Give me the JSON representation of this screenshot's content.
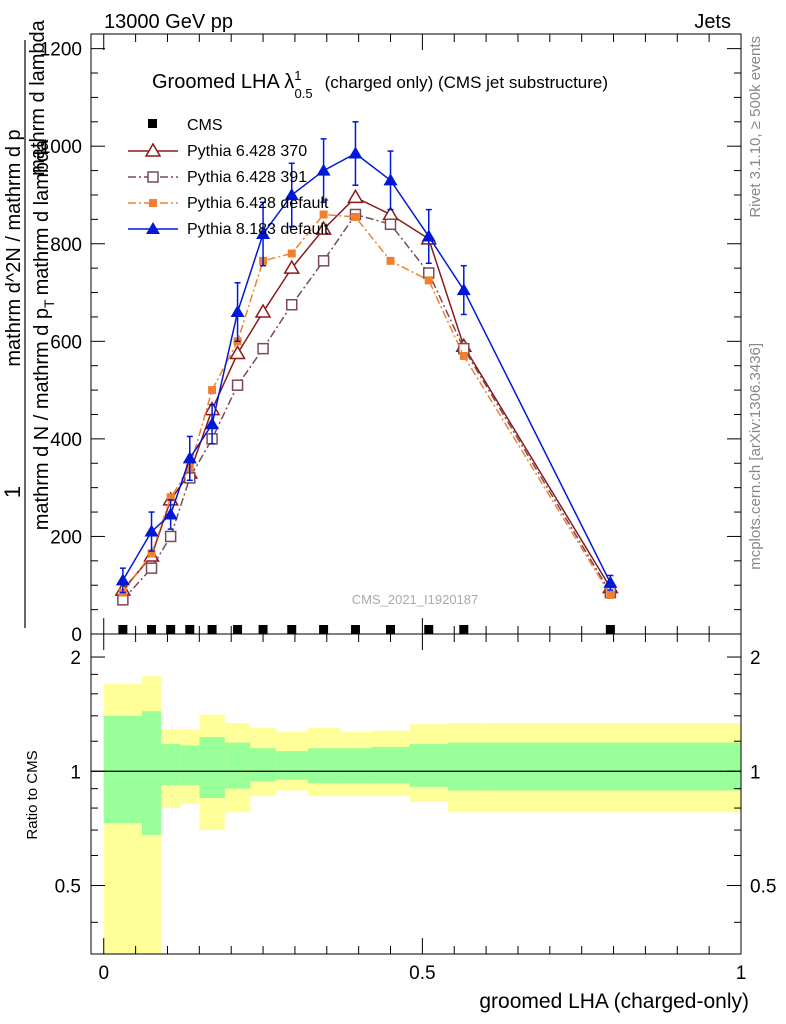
{
  "header": {
    "left": "13000 GeV pp",
    "right": "Jets"
  },
  "side": {
    "rivet": "Rivet 3.1.10, ≥ 500k events",
    "mcplots": "mcplots.cern.ch [arXiv:1306.3436]"
  },
  "watermark": "CMS_2021_I1920187",
  "chart_data": [
    {
      "type": "scatter",
      "title": "Groomed LHA λ",
      "title_sup": "1",
      "title_sub": "0.5",
      "title_suffix": "(charged only) (CMS jet substructure)",
      "ylabel_numerator": "1",
      "ylabel_main": "mathrm d N / mathrm d p",
      "ylabel_main_sub": "T",
      "ylabel_main_suffix": "mathrm d lambda",
      "ylabel_denominator": "mathrm d^2N / mathrm d p",
      "ylabel_extra": "mathrm d lambda",
      "ylim": [
        0,
        1230
      ],
      "yticks": [
        0,
        200,
        400,
        600,
        800,
        1000,
        1200
      ],
      "ytick_labels": [
        "0",
        "200",
        "400",
        "600",
        "800",
        "1000",
        "1200"
      ],
      "xlim": [
        -0.02,
        1.0
      ],
      "legend_position": "top-left",
      "x": [
        0.03,
        0.075,
        0.105,
        0.135,
        0.17,
        0.21,
        0.25,
        0.295,
        0.345,
        0.395,
        0.45,
        0.51,
        0.565,
        0.795
      ],
      "series": [
        {
          "name": "CMS",
          "color": "#000000",
          "marker": "square-filled",
          "values": [
            0,
            0,
            0,
            0,
            0,
            0,
            0,
            0,
            0,
            0,
            0,
            0,
            0,
            0
          ]
        },
        {
          "name": "Pythia 6.428 370",
          "color": "#8b1a1a",
          "marker": "triangle-open",
          "dash": "solid",
          "values": [
            90,
            160,
            275,
            330,
            460,
            575,
            660,
            750,
            830,
            895,
            860,
            810,
            590,
            95
          ]
        },
        {
          "name": "Pythia 6.428 391",
          "color": "#7a4a55",
          "marker": "square-open",
          "dash": "dash-dot",
          "values": [
            70,
            135,
            200,
            320,
            400,
            510,
            585,
            675,
            765,
            860,
            840,
            740,
            585,
            85
          ]
        },
        {
          "name": "Pythia 6.428 default",
          "color": "#f08030",
          "marker": "square-filled",
          "dash": "dash-dot",
          "values": [
            85,
            165,
            280,
            340,
            500,
            600,
            765,
            780,
            860,
            855,
            765,
            725,
            570,
            80
          ]
        },
        {
          "name": "Pythia 8.183 default",
          "color": "#0018d8",
          "marker": "triangle-filled",
          "dash": "solid",
          "values": [
            110,
            210,
            245,
            360,
            430,
            660,
            820,
            900,
            950,
            985,
            930,
            815,
            705,
            105
          ],
          "errors": [
            25,
            40,
            30,
            45,
            40,
            60,
            65,
            65,
            65,
            65,
            60,
            55,
            50,
            15
          ]
        }
      ]
    },
    {
      "type": "area",
      "ylabel": "Ratio to CMS",
      "xlabel": "groomed LHA (charged-only)",
      "ylim": [
        0.33,
        2.3
      ],
      "yticks": [
        0.5,
        1,
        2
      ],
      "ytick_labels": [
        "0.5",
        "1",
        "2"
      ],
      "xlim": [
        -0.02,
        1.0
      ],
      "xticks": [
        0,
        0.5,
        1
      ],
      "xtick_labels": [
        "0",
        "0.5",
        "1"
      ],
      "bins": [
        0,
        0.06,
        0.09,
        0.12,
        0.15,
        0.19,
        0.23,
        0.27,
        0.32,
        0.37,
        0.42,
        0.48,
        0.54,
        0.6,
        1.0
      ],
      "band_outer": {
        "name": "outer uncertainty",
        "color": "#ffff99",
        "lower": [
          0.33,
          0.33,
          0.8,
          0.82,
          0.7,
          0.78,
          0.86,
          0.89,
          0.86,
          0.86,
          0.86,
          0.83,
          0.78,
          0.78
        ],
        "upper": [
          1.7,
          1.78,
          1.29,
          1.29,
          1.41,
          1.34,
          1.3,
          1.27,
          1.3,
          1.27,
          1.28,
          1.33,
          1.34,
          1.34
        ]
      },
      "band_inner": {
        "name": "inner uncertainty",
        "color": "#99ff99",
        "lower": [
          0.73,
          0.68,
          0.92,
          0.92,
          0.85,
          0.9,
          0.94,
          0.95,
          0.93,
          0.93,
          0.93,
          0.91,
          0.89,
          0.89
        ],
        "upper": [
          1.4,
          1.44,
          1.18,
          1.17,
          1.23,
          1.19,
          1.15,
          1.13,
          1.15,
          1.15,
          1.16,
          1.18,
          1.19,
          1.19
        ]
      },
      "reference_line": 1
    }
  ]
}
